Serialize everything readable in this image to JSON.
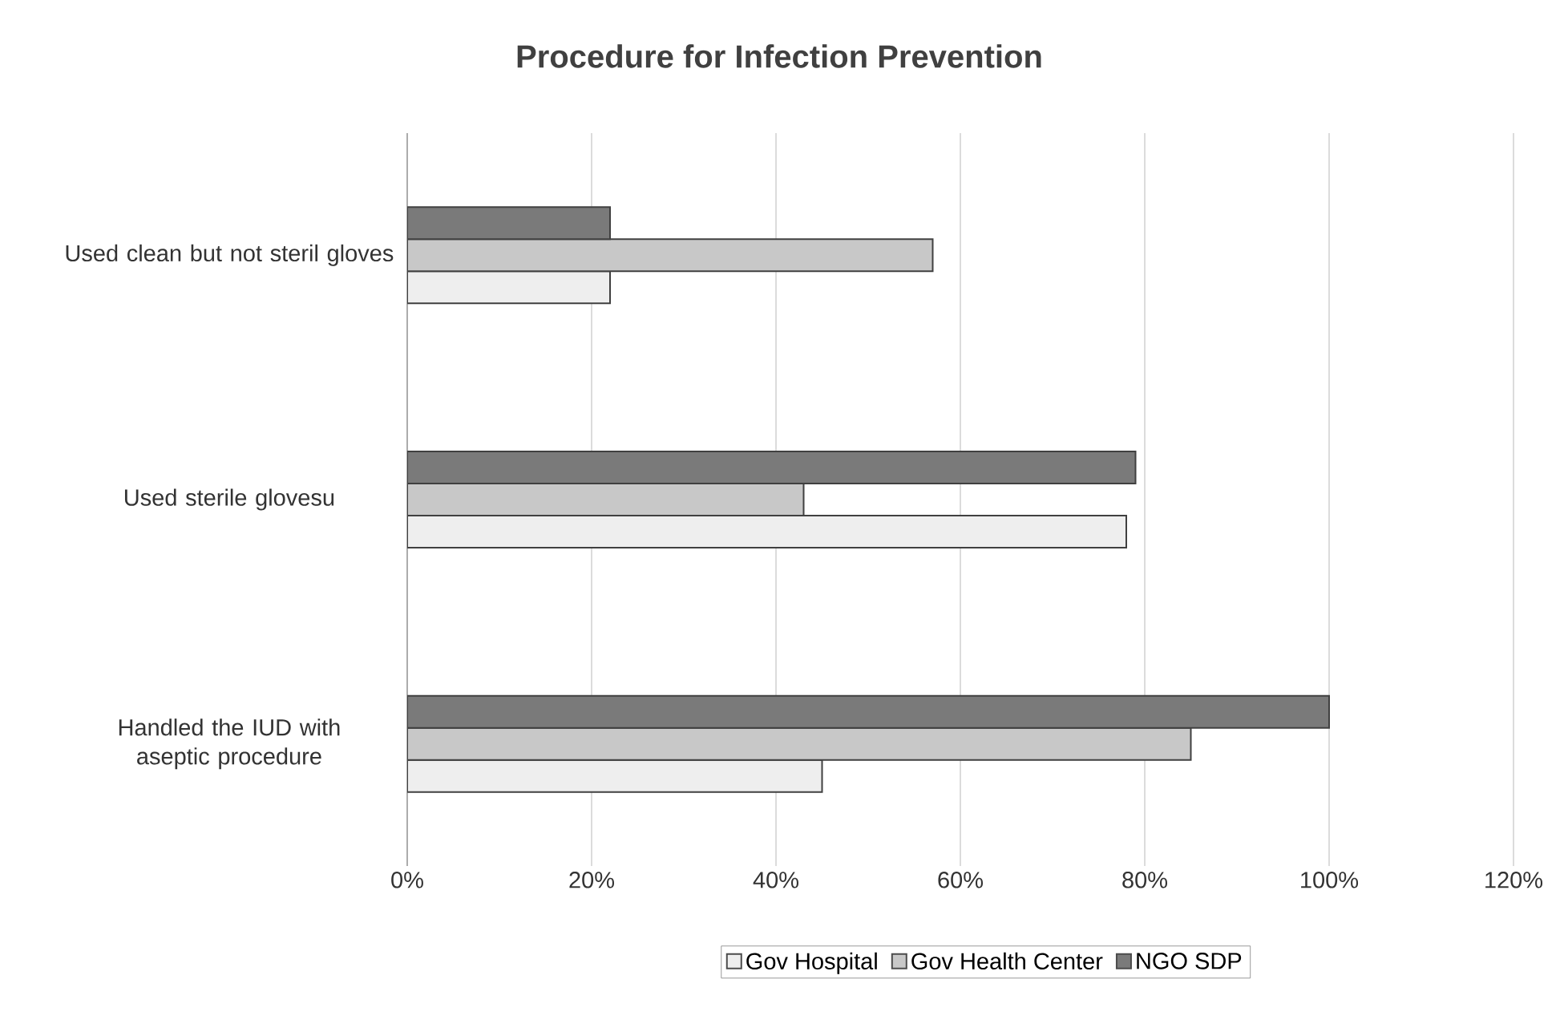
{
  "chart_data": {
    "type": "bar",
    "orientation": "horizontal",
    "title": "Procedure for Infection Prevention",
    "categories": [
      "Used clean but not steril gloves",
      "Used sterile glovesu",
      "Handled the IUD with aseptic procedure"
    ],
    "series": [
      {
        "name": "Gov Hospital",
        "color": "#eeeeee",
        "values": [
          22,
          78,
          45
        ]
      },
      {
        "name": "Gov Health Center",
        "color": "#c8c8c8",
        "values": [
          57,
          43,
          85
        ]
      },
      {
        "name": "NGO SDP",
        "color": "#7a7a7a",
        "values": [
          22,
          79,
          100
        ]
      }
    ],
    "xlim": [
      0,
      120
    ],
    "xticks": [
      {
        "value": 0,
        "label": "0%"
      },
      {
        "value": 20,
        "label": "20%"
      },
      {
        "value": 40,
        "label": "40%"
      },
      {
        "value": 60,
        "label": "60%"
      },
      {
        "value": 80,
        "label": "80%"
      },
      {
        "value": 100,
        "label": "100%"
      },
      {
        "value": 120,
        "label": "120%"
      }
    ],
    "grid": "x",
    "legend": "bottom"
  }
}
